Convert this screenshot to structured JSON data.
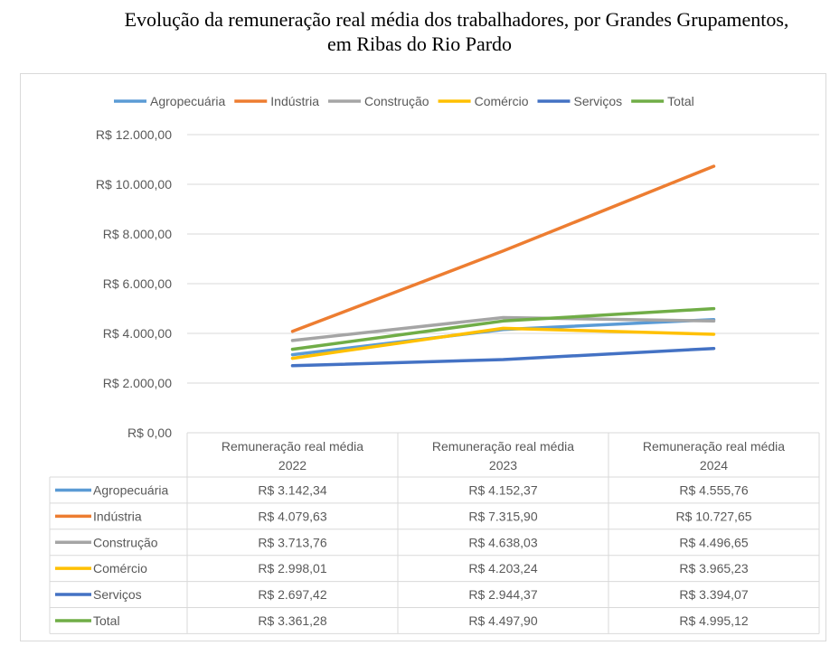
{
  "title": {
    "line1": "Evolução da remuneração real média dos trabalhadores, por Grandes Grupamentos,",
    "line2": "em Ribas do Rio Pardo"
  },
  "chart_data": {
    "type": "line",
    "categories": [
      "Remuneração real média 2022",
      "Remuneração real média 2023",
      "Remuneração real média 2024"
    ],
    "category_lines": [
      [
        "Remuneração real média",
        "2022"
      ],
      [
        "Remuneração real média",
        "2023"
      ],
      [
        "Remuneração real média",
        "2024"
      ]
    ],
    "ylim": [
      0,
      12000
    ],
    "yticks": [
      0,
      2000,
      4000,
      6000,
      8000,
      10000,
      12000
    ],
    "ytick_labels": [
      "R$ 0,00",
      "R$ 2.000,00",
      "R$ 4.000,00",
      "R$ 6.000,00",
      "R$ 8.000,00",
      "R$ 10.000,00",
      "R$ 12.000,00"
    ],
    "grid": true,
    "legend_position": "top",
    "data_table": true,
    "series": [
      {
        "name": "Agropecuária",
        "color": "#5b9bd5",
        "values": [
          3142.34,
          4152.37,
          4555.76
        ],
        "labels": [
          "R$ 3.142,34",
          "R$ 4.152,37",
          "R$ 4.555,76"
        ]
      },
      {
        "name": "Indústria",
        "color": "#ed7d31",
        "values": [
          4079.63,
          7315.9,
          10727.65
        ],
        "labels": [
          "R$ 4.079,63",
          "R$ 7.315,90",
          "R$ 10.727,65"
        ]
      },
      {
        "name": "Construção",
        "color": "#a5a5a5",
        "values": [
          3713.76,
          4638.03,
          4496.65
        ],
        "labels": [
          "R$ 3.713,76",
          "R$ 4.638,03",
          "R$ 4.496,65"
        ]
      },
      {
        "name": "Comércio",
        "color": "#ffc000",
        "values": [
          2998.01,
          4203.24,
          3965.23
        ],
        "labels": [
          "R$ 2.998,01",
          "R$ 4.203,24",
          "R$ 3.965,23"
        ]
      },
      {
        "name": "Serviços",
        "color": "#4472c4",
        "values": [
          2697.42,
          2944.37,
          3394.07
        ],
        "labels": [
          "R$ 2.697,42",
          "R$ 2.944,37",
          "R$ 3.394,07"
        ]
      },
      {
        "name": "Total",
        "color": "#70ad47",
        "values": [
          3361.28,
          4497.9,
          4995.12
        ],
        "labels": [
          "R$ 3.361,28",
          "R$ 4.497,90",
          "R$ 4.995,12"
        ]
      }
    ]
  }
}
